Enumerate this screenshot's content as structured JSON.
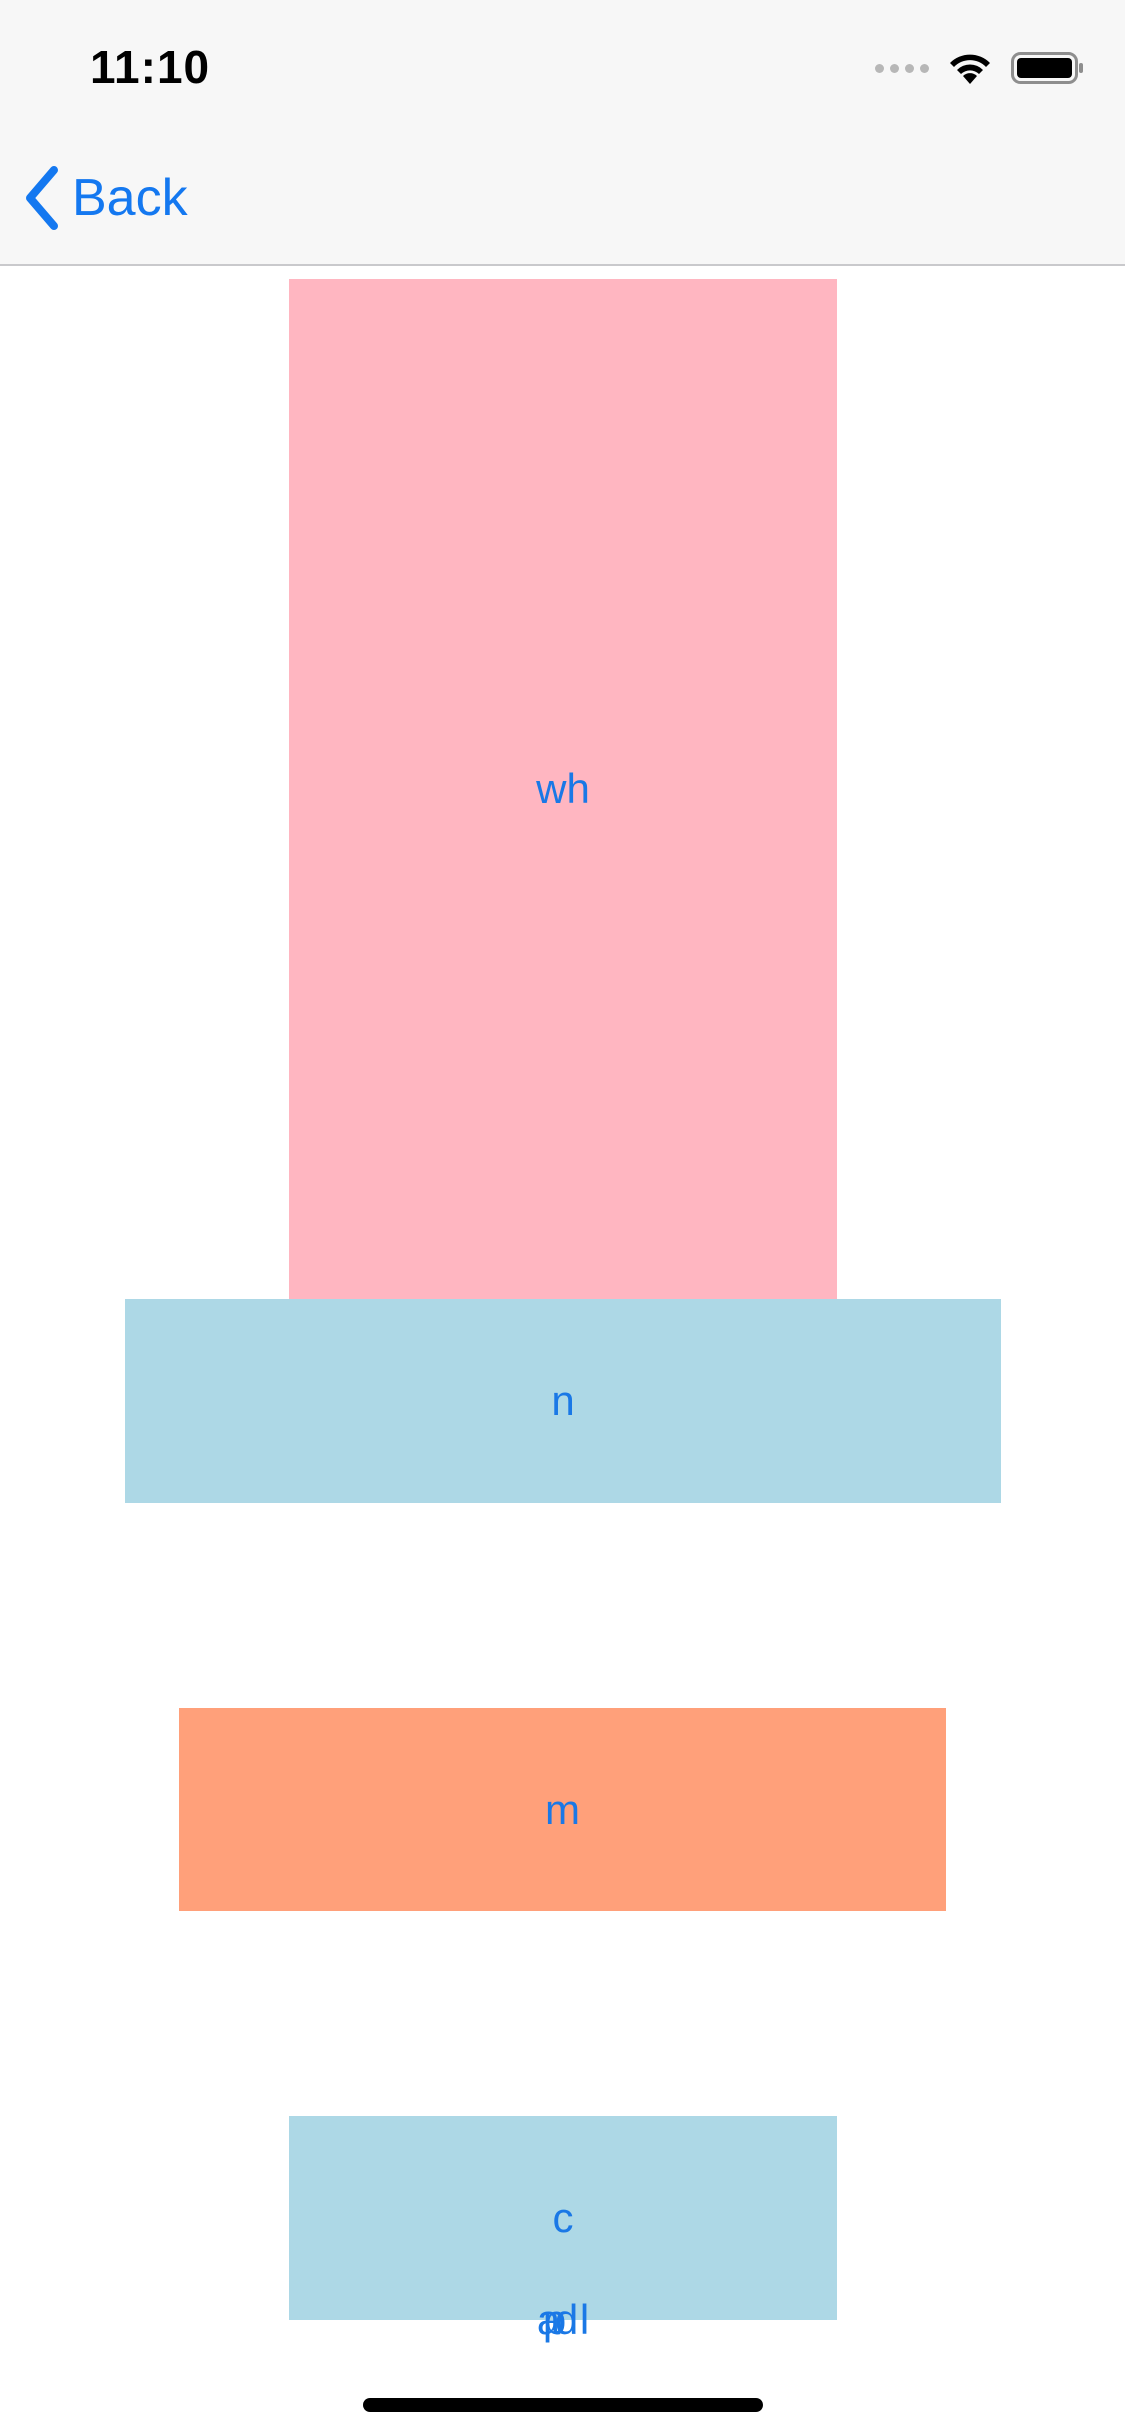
{
  "status_bar": {
    "time": "11:10",
    "icons": [
      "cellular-signal-icon",
      "wifi-icon",
      "battery-icon"
    ]
  },
  "nav": {
    "back_label": "Back",
    "back_icon": "chevron-left-icon",
    "accent_color": "#1478f0"
  },
  "blocks": [
    {
      "label": "wh",
      "color": "#ffb6c1"
    },
    {
      "label": "n",
      "color": "#add8e6"
    },
    {
      "label": "m",
      "color": "#ffa07a"
    },
    {
      "label": "c",
      "color": "#add8e6"
    }
  ],
  "overlapping_labels": [
    "a",
    "p",
    "d",
    "l"
  ],
  "text_color": "#1a78e6"
}
